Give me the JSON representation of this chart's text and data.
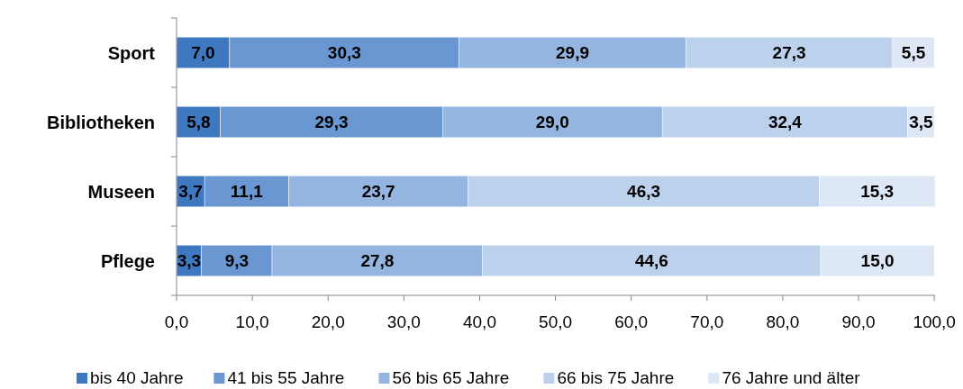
{
  "chart_data": {
    "type": "bar",
    "orientation": "horizontal",
    "stacked": true,
    "categories": [
      "Sport",
      "Bibliotheken",
      "Museen",
      "Pflege"
    ],
    "series": [
      {
        "name": "bis 40 Jahre",
        "color": "#3e78c0",
        "values": [
          7.0,
          5.8,
          3.7,
          3.3
        ],
        "value_labels": [
          "7,0",
          "5,8",
          "3,7",
          "3,3"
        ]
      },
      {
        "name": "41 bis 55 Jahre",
        "color": "#6a97d2",
        "values": [
          30.3,
          29.3,
          11.1,
          9.3
        ],
        "value_labels": [
          "30,3",
          "29,3",
          "11,1",
          "9,3"
        ]
      },
      {
        "name": "56 bis 65 Jahre",
        "color": "#94b5df",
        "values": [
          29.9,
          29.0,
          23.7,
          27.8
        ],
        "value_labels": [
          "29,9",
          "29,0",
          "23,7",
          "27,8"
        ]
      },
      {
        "name": "66 bis 75 Jahre",
        "color": "#bcd1ec",
        "values": [
          27.3,
          32.4,
          46.3,
          44.6
        ],
        "value_labels": [
          "27,3",
          "32,4",
          "46,3",
          "44,6"
        ]
      },
      {
        "name": "76 Jahre und älter",
        "color": "#dde7f5",
        "values": [
          5.5,
          3.5,
          15.3,
          15.0
        ],
        "value_labels": [
          "5,5",
          "3,5",
          "15,3",
          "15,0"
        ]
      }
    ],
    "xlim": [
      0,
      100.1
    ],
    "xticks": [
      {
        "value": 0,
        "label": "0,0"
      },
      {
        "value": 10,
        "label": "10,0"
      },
      {
        "value": 20,
        "label": "20,0"
      },
      {
        "value": 30,
        "label": "30,0"
      },
      {
        "value": 40,
        "label": "40,0"
      },
      {
        "value": 50,
        "label": "50,0"
      },
      {
        "value": 60,
        "label": "60,0"
      },
      {
        "value": 70,
        "label": "70,0"
      },
      {
        "value": 80,
        "label": "80,0"
      },
      {
        "value": 90,
        "label": "90,0"
      },
      {
        "value": 100,
        "label": "100,0"
      }
    ],
    "grid": false,
    "legend": "bottom"
  }
}
